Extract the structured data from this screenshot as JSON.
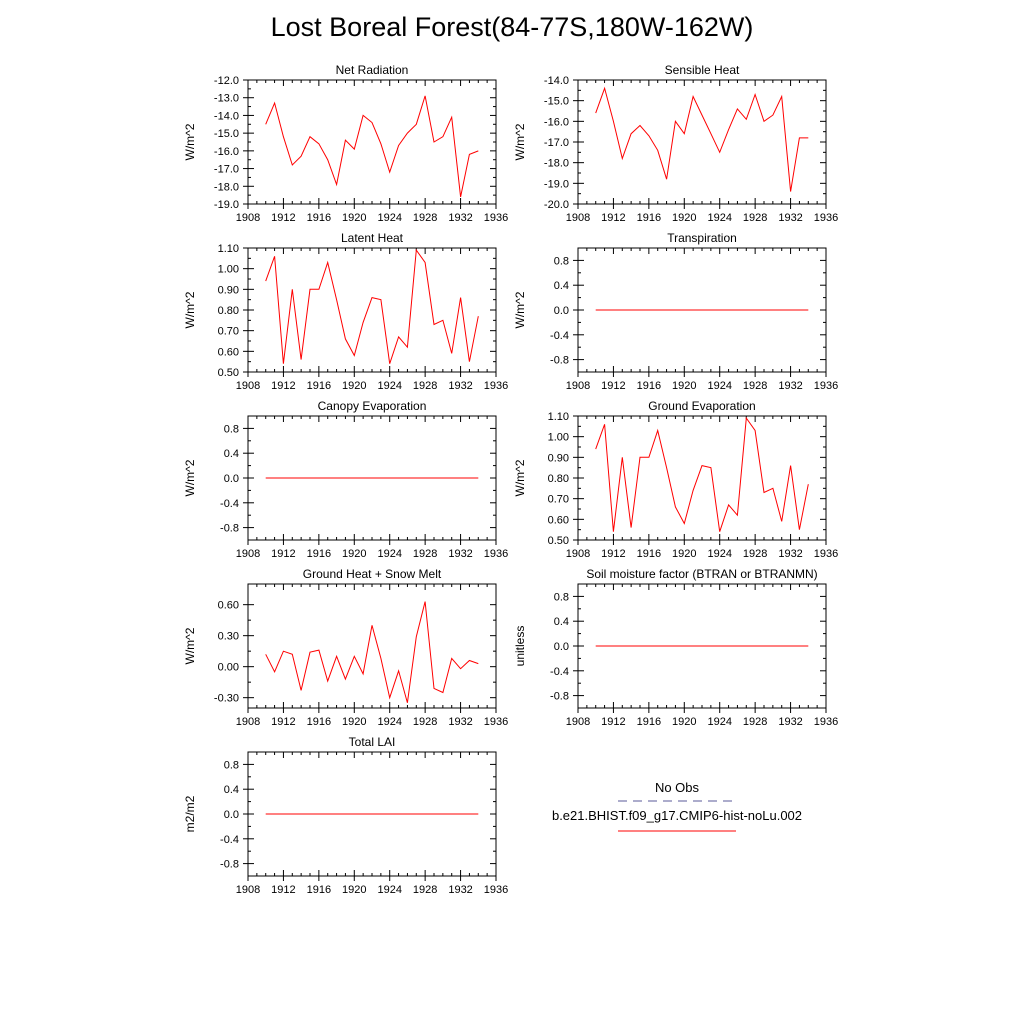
{
  "title": "Lost Boreal Forest(84-77S,180W-162W)",
  "line_color": "#ff0000",
  "obs_line_color": "#5a5a9a",
  "legend": {
    "obs_label": "No Obs",
    "model_label": "b.e21.BHIST.f09_g17.CMIP6-hist-noLu.002"
  },
  "chart_data": [
    {
      "type": "line",
      "title": "Net Radiation",
      "ylabel": "W/m^2",
      "xlim": [
        1908,
        1936
      ],
      "xticks": [
        "1908",
        "1912",
        "1916",
        "1920",
        "1924",
        "1928",
        "1932",
        "1936"
      ],
      "ylim": [
        -19.0,
        -12.0
      ],
      "yticks": [
        "-19.0",
        "-18.0",
        "-17.0",
        "-16.0",
        "-15.0",
        "-14.0",
        "-13.0",
        "-12.0"
      ],
      "x": [
        1910,
        1911,
        1912,
        1913,
        1914,
        1915,
        1916,
        1917,
        1918,
        1919,
        1920,
        1921,
        1922,
        1923,
        1924,
        1925,
        1926,
        1927,
        1928,
        1929,
        1930,
        1931,
        1932,
        1933,
        1934
      ],
      "values": [
        -14.5,
        -13.3,
        -15.2,
        -16.8,
        -16.3,
        -15.2,
        -15.6,
        -16.5,
        -17.9,
        -15.4,
        -15.9,
        -14.0,
        -14.4,
        -15.6,
        -17.2,
        -15.7,
        -15.0,
        -14.5,
        -12.9,
        -15.5,
        -15.2,
        -14.1,
        -18.6,
        -16.2,
        -16.0
      ]
    },
    {
      "type": "line",
      "title": "Sensible Heat",
      "ylabel": "W/m^2",
      "xlim": [
        1908,
        1936
      ],
      "xticks": [
        "1908",
        "1912",
        "1916",
        "1920",
        "1924",
        "1928",
        "1932",
        "1936"
      ],
      "ylim": [
        -20.0,
        -14.0
      ],
      "yticks": [
        "-20.0",
        "-19.0",
        "-18.0",
        "-17.0",
        "-16.0",
        "-15.0",
        "-14.0"
      ],
      "x": [
        1910,
        1911,
        1912,
        1913,
        1914,
        1915,
        1916,
        1917,
        1918,
        1919,
        1920,
        1921,
        1922,
        1923,
        1924,
        1925,
        1926,
        1927,
        1928,
        1929,
        1930,
        1931,
        1932,
        1933,
        1934
      ],
      "values": [
        -15.6,
        -14.4,
        -16.0,
        -17.8,
        -16.6,
        -16.2,
        -16.7,
        -17.4,
        -18.8,
        -16.0,
        -16.6,
        -14.8,
        -15.7,
        -16.6,
        -17.5,
        -16.4,
        -15.4,
        -15.9,
        -14.7,
        -16.0,
        -15.7,
        -14.8,
        -19.4,
        -16.8,
        -16.8
      ]
    },
    {
      "type": "line",
      "title": "Latent Heat",
      "ylabel": "W/m^2",
      "xlim": [
        1908,
        1936
      ],
      "xticks": [
        "1908",
        "1912",
        "1916",
        "1920",
        "1924",
        "1928",
        "1932",
        "1936"
      ],
      "ylim": [
        0.5,
        1.1
      ],
      "yticks": [
        "0.50",
        "0.60",
        "0.70",
        "0.80",
        "0.90",
        "1.00",
        "1.10"
      ],
      "x": [
        1910,
        1911,
        1912,
        1913,
        1914,
        1915,
        1916,
        1917,
        1918,
        1919,
        1920,
        1921,
        1922,
        1923,
        1924,
        1925,
        1926,
        1927,
        1928,
        1929,
        1930,
        1931,
        1932,
        1933,
        1934
      ],
      "values": [
        0.94,
        1.06,
        0.54,
        0.9,
        0.56,
        0.9,
        0.9,
        1.03,
        0.85,
        0.66,
        0.58,
        0.74,
        0.86,
        0.85,
        0.54,
        0.67,
        0.62,
        1.09,
        1.03,
        0.73,
        0.75,
        0.59,
        0.86,
        0.55,
        0.77
      ]
    },
    {
      "type": "line",
      "title": "Transpiration",
      "ylabel": "W/m^2",
      "xlim": [
        1908,
        1936
      ],
      "xticks": [
        "1908",
        "1912",
        "1916",
        "1920",
        "1924",
        "1928",
        "1932",
        "1936"
      ],
      "ylim": [
        -1.0,
        1.0
      ],
      "yticks": [
        "-0.8",
        "-0.4",
        "0.0",
        "0.4",
        "0.8"
      ],
      "x": [
        1910,
        1934
      ],
      "values": [
        0.0,
        0.0
      ]
    },
    {
      "type": "line",
      "title": "Canopy Evaporation",
      "ylabel": "W/m^2",
      "xlim": [
        1908,
        1936
      ],
      "xticks": [
        "1908",
        "1912",
        "1916",
        "1920",
        "1924",
        "1928",
        "1932",
        "1936"
      ],
      "ylim": [
        -1.0,
        1.0
      ],
      "yticks": [
        "-0.8",
        "-0.4",
        "0.0",
        "0.4",
        "0.8"
      ],
      "x": [
        1910,
        1934
      ],
      "values": [
        0.0,
        0.0
      ]
    },
    {
      "type": "line",
      "title": "Ground Evaporation",
      "ylabel": "W/m^2",
      "xlim": [
        1908,
        1936
      ],
      "xticks": [
        "1908",
        "1912",
        "1916",
        "1920",
        "1924",
        "1928",
        "1932",
        "1936"
      ],
      "ylim": [
        0.5,
        1.1
      ],
      "yticks": [
        "0.50",
        "0.60",
        "0.70",
        "0.80",
        "0.90",
        "1.00",
        "1.10"
      ],
      "x": [
        1910,
        1911,
        1912,
        1913,
        1914,
        1915,
        1916,
        1917,
        1918,
        1919,
        1920,
        1921,
        1922,
        1923,
        1924,
        1925,
        1926,
        1927,
        1928,
        1929,
        1930,
        1931,
        1932,
        1933,
        1934
      ],
      "values": [
        0.94,
        1.06,
        0.54,
        0.9,
        0.56,
        0.9,
        0.9,
        1.03,
        0.85,
        0.66,
        0.58,
        0.74,
        0.86,
        0.85,
        0.54,
        0.67,
        0.62,
        1.09,
        1.03,
        0.73,
        0.75,
        0.59,
        0.86,
        0.55,
        0.77
      ]
    },
    {
      "type": "line",
      "title": "Ground Heat + Snow Melt",
      "ylabel": "W/m^2",
      "xlim": [
        1908,
        1936
      ],
      "xticks": [
        "1908",
        "1912",
        "1916",
        "1920",
        "1924",
        "1928",
        "1932",
        "1936"
      ],
      "ylim": [
        -0.4,
        0.8
      ],
      "yticks": [
        "-0.30",
        "0.00",
        "0.30",
        "0.60"
      ],
      "x": [
        1910,
        1911,
        1912,
        1913,
        1914,
        1915,
        1916,
        1917,
        1918,
        1919,
        1920,
        1921,
        1922,
        1923,
        1924,
        1925,
        1926,
        1927,
        1928,
        1929,
        1930,
        1931,
        1932,
        1933,
        1934
      ],
      "values": [
        0.12,
        -0.05,
        0.15,
        0.12,
        -0.23,
        0.14,
        0.16,
        -0.14,
        0.1,
        -0.12,
        0.1,
        -0.07,
        0.4,
        0.08,
        -0.3,
        -0.04,
        -0.35,
        0.29,
        0.63,
        -0.21,
        -0.25,
        0.08,
        -0.02,
        0.06,
        0.03
      ]
    },
    {
      "type": "line",
      "title": "Soil moisture factor (BTRAN or BTRANMN)",
      "ylabel": "unitless",
      "xlim": [
        1908,
        1936
      ],
      "xticks": [
        "1908",
        "1912",
        "1916",
        "1920",
        "1924",
        "1928",
        "1932",
        "1936"
      ],
      "ylim": [
        -1.0,
        1.0
      ],
      "yticks": [
        "-0.8",
        "-0.4",
        "0.0",
        "0.4",
        "0.8"
      ],
      "x": [
        1910,
        1934
      ],
      "values": [
        0.0,
        0.0
      ]
    },
    {
      "type": "line",
      "title": "Total LAI",
      "ylabel": "m2/m2",
      "xlim": [
        1908,
        1936
      ],
      "xticks": [
        "1908",
        "1912",
        "1916",
        "1920",
        "1924",
        "1928",
        "1932",
        "1936"
      ],
      "ylim": [
        -1.0,
        1.0
      ],
      "yticks": [
        "-0.8",
        "-0.4",
        "0.0",
        "0.4",
        "0.8"
      ],
      "x": [
        1910,
        1934
      ],
      "values": [
        0.0,
        0.0
      ]
    }
  ]
}
